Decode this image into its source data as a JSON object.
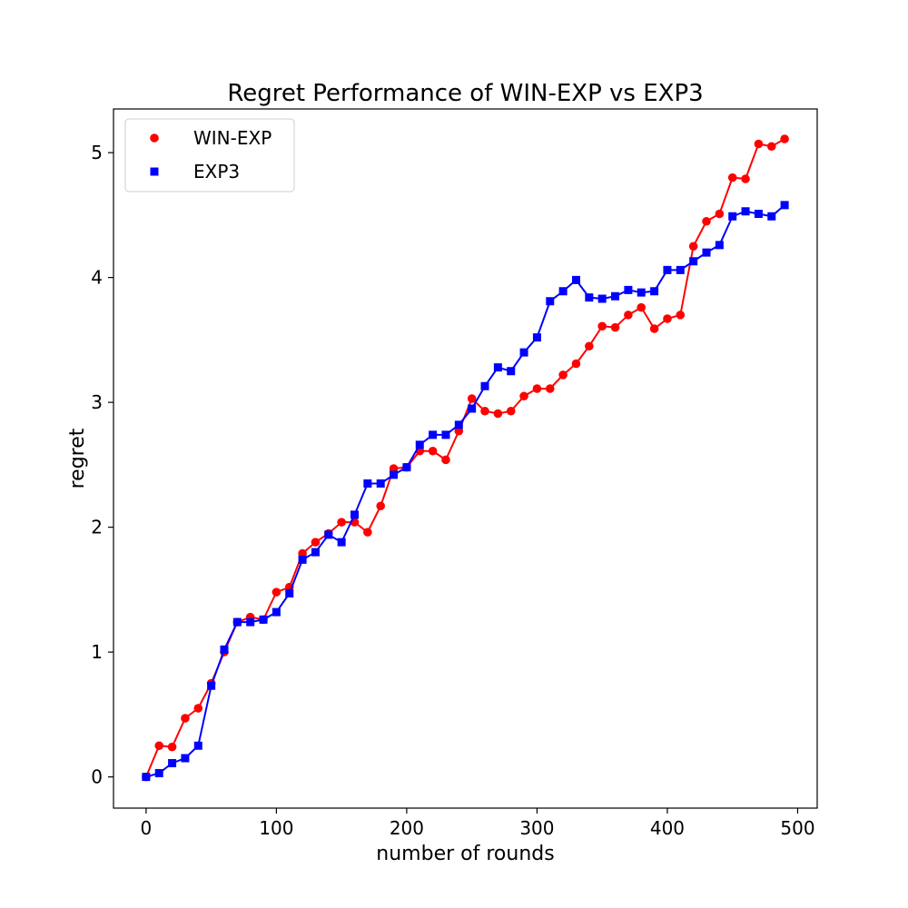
{
  "chart_data": {
    "type": "line",
    "title": "Regret Performance of WIN-EXP vs EXP3",
    "xlabel": "number of rounds",
    "ylabel": "regret",
    "xlim": [
      -25,
      515
    ],
    "ylim": [
      -0.25,
      5.35
    ],
    "xticks": [
      0,
      100,
      200,
      300,
      400,
      500
    ],
    "yticks": [
      0,
      1,
      2,
      3,
      4,
      5
    ],
    "grid": false,
    "legend": "top-left",
    "x": [
      0,
      10,
      20,
      30,
      40,
      50,
      60,
      70,
      80,
      90,
      100,
      110,
      120,
      130,
      140,
      150,
      160,
      170,
      180,
      190,
      200,
      210,
      220,
      230,
      240,
      250,
      260,
      270,
      280,
      290,
      300,
      310,
      320,
      330,
      340,
      350,
      360,
      370,
      380,
      390,
      400,
      410,
      420,
      430,
      440,
      450,
      460,
      470,
      480,
      490
    ],
    "series": [
      {
        "name": "WIN-EXP",
        "color": "#ff0000",
        "marker": "circle",
        "values": [
          0,
          0.25,
          0.24,
          0.47,
          0.55,
          0.75,
          1.0,
          1.24,
          1.28,
          1.26,
          1.48,
          1.52,
          1.79,
          1.88,
          1.95,
          2.04,
          2.04,
          1.96,
          2.17,
          2.47,
          2.48,
          2.61,
          2.61,
          2.54,
          2.77,
          3.03,
          2.93,
          2.91,
          2.93,
          3.05,
          3.11,
          3.11,
          3.22,
          3.31,
          3.45,
          3.61,
          3.6,
          3.7,
          3.76,
          3.59,
          3.67,
          3.7,
          4.25,
          4.45,
          4.51,
          4.8,
          4.79,
          5.07,
          5.05,
          5.11
        ]
      },
      {
        "name": "EXP3",
        "color": "#0000ff",
        "marker": "square",
        "values": [
          0,
          0.03,
          0.11,
          0.15,
          0.25,
          0.73,
          1.02,
          1.24,
          1.24,
          1.26,
          1.32,
          1.47,
          1.74,
          1.8,
          1.94,
          1.88,
          2.1,
          2.35,
          2.35,
          2.42,
          2.48,
          2.66,
          2.74,
          2.74,
          2.82,
          2.95,
          3.13,
          3.28,
          3.25,
          3.4,
          3.52,
          3.81,
          3.89,
          3.98,
          3.84,
          3.83,
          3.85,
          3.9,
          3.88,
          3.89,
          4.06,
          4.06,
          4.13,
          4.2,
          4.26,
          4.49,
          4.53,
          4.51,
          4.49,
          4.58
        ]
      }
    ]
  }
}
